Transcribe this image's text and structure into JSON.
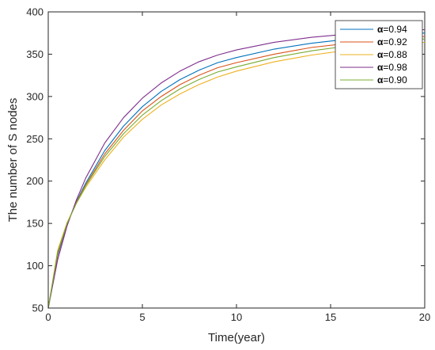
{
  "chart_data": {
    "type": "line",
    "title": "",
    "xlabel": "Time(year)",
    "ylabel": "The number of S nodes",
    "xlim": [
      0,
      20
    ],
    "ylim": [
      50,
      400
    ],
    "xticks": [
      0,
      5,
      10,
      15,
      20
    ],
    "yticks": [
      50,
      100,
      150,
      200,
      250,
      300,
      350,
      400
    ],
    "grid": false,
    "legend_position": "top-right",
    "x": [
      0,
      0.5,
      1,
      1.5,
      2,
      3,
      4,
      5,
      6,
      7,
      8,
      9,
      10,
      12,
      14,
      16,
      18,
      20
    ],
    "series": [
      {
        "name": "α=0.94",
        "legend_symbol": "α",
        "legend_value": "=0.94",
        "color": "#0072BD",
        "values": [
          50,
          112,
          149,
          176,
          198,
          236,
          265,
          288,
          306,
          320,
          331,
          340,
          346,
          356,
          363,
          368,
          372,
          375
        ]
      },
      {
        "name": "α=0.92",
        "legend_symbol": "α",
        "legend_value": "=0.92",
        "color": "#D95319",
        "values": [
          50,
          114,
          150,
          175,
          196,
          232,
          260,
          283,
          300,
          314,
          325,
          334,
          340,
          350,
          358,
          363,
          367,
          371
        ]
      },
      {
        "name": "α=0.88",
        "legend_symbol": "α",
        "legend_value": "=0.88",
        "color": "#EDB120",
        "values": [
          50,
          118,
          151,
          174,
          193,
          225,
          252,
          273,
          290,
          303,
          314,
          323,
          330,
          341,
          349,
          355,
          360,
          364
        ]
      },
      {
        "name": "α=0.98",
        "legend_symbol": "α",
        "legend_value": "=0.98",
        "color": "#7E2F8E",
        "values": [
          50,
          107,
          147,
          178,
          204,
          245,
          275,
          298,
          316,
          330,
          341,
          349,
          355,
          364,
          370,
          374,
          377,
          379
        ]
      },
      {
        "name": "α=0.90",
        "legend_symbol": "α",
        "legend_value": "=0.90",
        "color": "#77AC30",
        "values": [
          50,
          116,
          150,
          174,
          195,
          229,
          256,
          278,
          295,
          309,
          320,
          329,
          335,
          346,
          354,
          360,
          364,
          368
        ]
      }
    ]
  }
}
